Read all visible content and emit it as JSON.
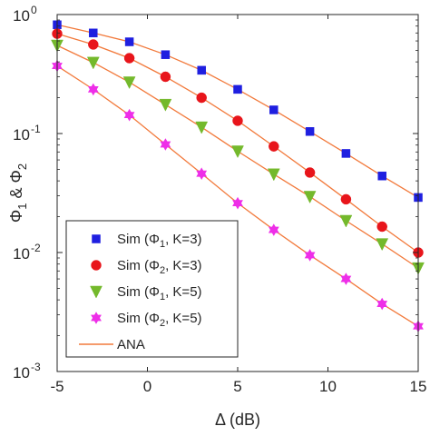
{
  "chart_data": {
    "type": "scatter",
    "title": "",
    "xlabel": "Δ (dB)",
    "ylabel": "Φ1 & Φ2",
    "xlim": [
      -5,
      15
    ],
    "ylim": [
      0.001,
      1
    ],
    "yscale": "log",
    "grid": false,
    "legend_position": "bottom-left",
    "x_ticks": [
      -5,
      0,
      5,
      10,
      15
    ],
    "x_tick_labels": [
      "-5",
      "0",
      "5",
      "10",
      "15"
    ],
    "y_ticks": [
      {
        "value": 1,
        "base": "10",
        "exp": "0"
      },
      {
        "value": 0.1,
        "base": "10",
        "exp": "-1"
      },
      {
        "value": 0.01,
        "base": "10",
        "exp": "-2"
      },
      {
        "value": 0.001,
        "base": "10",
        "exp": "-3"
      }
    ],
    "x": [
      -5,
      -3,
      -1,
      1,
      3,
      5,
      7,
      9,
      11,
      13,
      15
    ],
    "series": [
      {
        "name": "Sim (Φ1, K=3)",
        "legend": {
          "pre": "Sim (Φ",
          "sub": "1",
          "post": ", K=3)"
        },
        "marker": "square",
        "color": "#1f1fe0",
        "values": [
          0.82,
          0.7,
          0.59,
          0.46,
          0.34,
          0.235,
          0.158,
          0.104,
          0.068,
          0.044,
          0.029
        ]
      },
      {
        "name": "Sim (Φ2, K=3)",
        "legend": {
          "pre": "Sim (Φ",
          "sub": "2",
          "post": ", K=3)"
        },
        "marker": "circle",
        "color": "#e8151b",
        "values": [
          0.69,
          0.56,
          0.43,
          0.3,
          0.2,
          0.128,
          0.078,
          0.047,
          0.028,
          0.0165,
          0.01
        ]
      },
      {
        "name": "Sim (Φ1, K=5)",
        "legend": {
          "pre": "Sim (Φ",
          "sub": "1",
          "post": ", K=5)"
        },
        "marker": "triangle-down",
        "color": "#74b92c",
        "values": [
          0.55,
          0.395,
          0.27,
          0.175,
          0.113,
          0.071,
          0.0455,
          0.0295,
          0.0185,
          0.0118,
          0.0074
        ]
      },
      {
        "name": "Sim (Φ2, K=5)",
        "legend": {
          "pre": "Sim (Φ",
          "sub": "2",
          "post": ", K=5)"
        },
        "marker": "hexagram",
        "color": "#ee2ee8",
        "values": [
          0.37,
          0.235,
          0.143,
          0.081,
          0.046,
          0.026,
          0.0155,
          0.0095,
          0.006,
          0.0037,
          0.0024
        ]
      }
    ],
    "analytic": {
      "name": "ANA",
      "color": "#f27a3c",
      "description": "solid line through each series"
    }
  }
}
